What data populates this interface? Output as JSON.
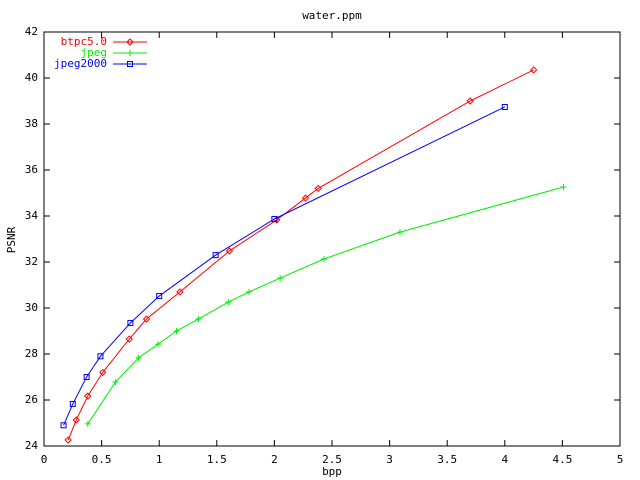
{
  "chart_data": {
    "type": "line",
    "title": "water.ppm",
    "x_label": "bpp",
    "y_label": "PSNR",
    "xlim": [
      0,
      5
    ],
    "ylim": [
      24,
      42
    ],
    "xticks": [
      0,
      0.5,
      1,
      1.5,
      2,
      2.5,
      3,
      3.5,
      4,
      4.5,
      5
    ],
    "yticks": [
      24,
      26,
      28,
      30,
      32,
      34,
      36,
      38,
      40,
      42
    ],
    "grid": false,
    "legend": "top-left",
    "series": [
      {
        "name": "btpc5.0",
        "color": "#ff0000",
        "marker": "diamond",
        "x": [
          0.21,
          0.28,
          0.38,
          0.51,
          0.74,
          0.89,
          1.18,
          1.61,
          2.02,
          2.27,
          2.38,
          3.7,
          4.25
        ],
        "values": [
          24.26,
          25.13,
          26.17,
          27.2,
          28.65,
          29.52,
          30.7,
          32.48,
          33.83,
          34.78,
          35.2,
          39.0,
          40.35
        ]
      },
      {
        "name": "jpeg",
        "color": "#00ee00",
        "marker": "plus",
        "x": [
          0.38,
          0.62,
          0.82,
          0.99,
          1.15,
          1.34,
          1.6,
          1.78,
          2.05,
          2.43,
          3.09,
          4.51
        ],
        "values": [
          24.96,
          26.78,
          27.83,
          28.43,
          29.0,
          29.52,
          30.26,
          30.7,
          31.3,
          32.13,
          33.3,
          35.26
        ]
      },
      {
        "name": "jpeg2000",
        "color": "#0000ff",
        "marker": "square",
        "x": [
          0.17,
          0.25,
          0.37,
          0.49,
          0.75,
          1.0,
          1.49,
          2.0,
          4.0
        ],
        "values": [
          24.9,
          25.83,
          27.0,
          27.9,
          29.35,
          30.52,
          32.3,
          33.87,
          38.74
        ]
      }
    ]
  }
}
